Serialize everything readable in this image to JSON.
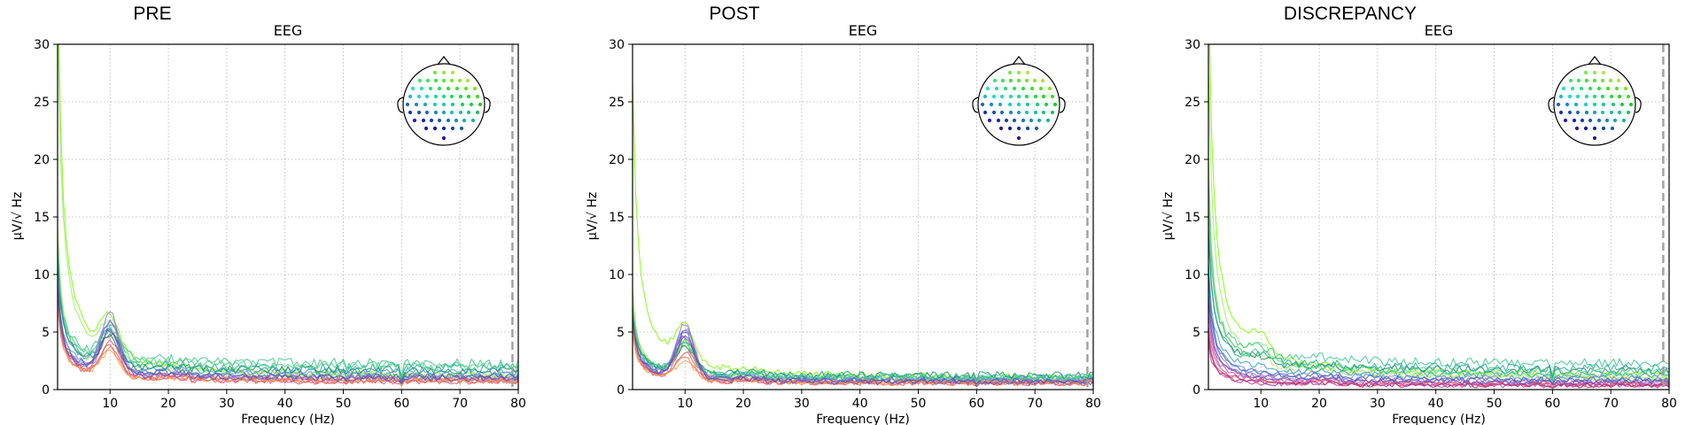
{
  "figure": {
    "panels": [
      {
        "heading": "PRE",
        "axes_title": "EEG",
        "xlabel": "Frequency (Hz)",
        "ylabel": "µV/√ Hz"
      },
      {
        "heading": "POST",
        "axes_title": "EEG",
        "xlabel": "Frequency (Hz)",
        "ylabel": "µV/√ Hz"
      },
      {
        "heading": "DISCREPANCY",
        "axes_title": "EEG",
        "xlabel": "Frequency (Hz)",
        "ylabel": "µV/√ Hz"
      }
    ]
  },
  "colors": {
    "grid": "#b0b0b0",
    "cutoff_line": "#a0a0a0",
    "spine": "#000000"
  },
  "chart_data": [
    {
      "type": "line",
      "title": "EEG",
      "xlabel": "Frequency (Hz)",
      "ylabel": "µV/√ Hz",
      "xlim": [
        1,
        80
      ],
      "ylim": [
        0,
        30
      ],
      "xticks": [
        10,
        20,
        30,
        40,
        50,
        60,
        70,
        80
      ],
      "yticks": [
        0,
        5,
        10,
        15,
        20,
        25,
        30
      ],
      "grid": true,
      "legend": "sensor-position inset, top-right",
      "cutoff_frequency": 79,
      "series_shape": "1/f decay with alpha peak near 10 Hz",
      "series": [
        {
          "color": "#7cfc00",
          "low_freq_value": 36,
          "alpha_peak": 4.6,
          "tail_value": 1.0
        },
        {
          "color": "#98f060",
          "low_freq_value": 32,
          "alpha_peak": 4.4,
          "tail_value": 0.9
        },
        {
          "color": "#b8e070",
          "low_freq_value": 14,
          "alpha_peak": 4.0,
          "tail_value": 1.0
        },
        {
          "color": "#40c890",
          "low_freq_value": 12,
          "alpha_peak": 4.2,
          "tail_value": 2.2
        },
        {
          "color": "#20b0a0",
          "low_freq_value": 11,
          "alpha_peak": 4.1,
          "tail_value": 1.8
        },
        {
          "color": "#3aa0c8",
          "low_freq_value": 10.5,
          "alpha_peak": 4.6,
          "tail_value": 1.5
        },
        {
          "color": "#6a8ce0",
          "low_freq_value": 10,
          "alpha_peak": 5.6,
          "tail_value": 1.2
        },
        {
          "color": "#8c78e8",
          "low_freq_value": 9.5,
          "alpha_peak": 6.5,
          "tail_value": 1.0
        },
        {
          "color": "#a060d0",
          "low_freq_value": 9,
          "alpha_peak": 5.8,
          "tail_value": 0.9
        },
        {
          "color": "#c05ab0",
          "low_freq_value": 8.5,
          "alpha_peak": 5.2,
          "tail_value": 0.8
        },
        {
          "color": "#e0508a",
          "low_freq_value": 8,
          "alpha_peak": 4.5,
          "tail_value": 0.6
        },
        {
          "color": "#e85a5a",
          "low_freq_value": 9,
          "alpha_peak": 4.0,
          "tail_value": 0.6
        },
        {
          "color": "#f08050",
          "low_freq_value": 7.5,
          "alpha_peak": 3.8,
          "tail_value": 0.7
        },
        {
          "color": "#f0a050",
          "low_freq_value": 7,
          "alpha_peak": 3.4,
          "tail_value": 0.8
        },
        {
          "color": "#209070",
          "low_freq_value": 11,
          "alpha_peak": 3.7,
          "tail_value": 1.6
        },
        {
          "color": "#50d080",
          "low_freq_value": 12.5,
          "alpha_peak": 3.9,
          "tail_value": 2.0
        },
        {
          "color": "#4060b0",
          "low_freq_value": 9,
          "alpha_peak": 5.0,
          "tail_value": 1.1
        },
        {
          "color": "#7050a0",
          "low_freq_value": 8.5,
          "alpha_peak": 4.8,
          "tail_value": 0.9
        }
      ]
    },
    {
      "type": "line",
      "title": "EEG",
      "xlabel": "Frequency (Hz)",
      "ylabel": "µV/√ Hz",
      "xlim": [
        1,
        80
      ],
      "ylim": [
        0,
        30
      ],
      "xticks": [
        10,
        20,
        30,
        40,
        50,
        60,
        70,
        80
      ],
      "yticks": [
        0,
        5,
        10,
        15,
        20,
        25,
        30
      ],
      "grid": true,
      "legend": "sensor-position inset, top-right",
      "cutoff_frequency": 79,
      "series_shape": "1/f decay with alpha peak near 10 Hz",
      "series": [
        {
          "color": "#7cfc00",
          "low_freq_value": 27,
          "alpha_peak": 4.3,
          "tail_value": 0.9
        },
        {
          "color": "#98f060",
          "low_freq_value": 9,
          "alpha_peak": 4.1,
          "tail_value": 0.8
        },
        {
          "color": "#b8e070",
          "low_freq_value": 8.5,
          "alpha_peak": 4.0,
          "tail_value": 0.8
        },
        {
          "color": "#40c890",
          "low_freq_value": 7.5,
          "alpha_peak": 4.0,
          "tail_value": 1.1
        },
        {
          "color": "#20b0a0",
          "low_freq_value": 7.2,
          "alpha_peak": 4.3,
          "tail_value": 1.0
        },
        {
          "color": "#3aa0c8",
          "low_freq_value": 7.0,
          "alpha_peak": 4.8,
          "tail_value": 0.9
        },
        {
          "color": "#6a8ce0",
          "low_freq_value": 6.8,
          "alpha_peak": 5.5,
          "tail_value": 0.8
        },
        {
          "color": "#8c78e8",
          "low_freq_value": 6.5,
          "alpha_peak": 6.0,
          "tail_value": 0.7
        },
        {
          "color": "#a060d0",
          "low_freq_value": 6.3,
          "alpha_peak": 5.6,
          "tail_value": 0.7
        },
        {
          "color": "#c05ab0",
          "low_freq_value": 6.0,
          "alpha_peak": 5.0,
          "tail_value": 0.6
        },
        {
          "color": "#e0508a",
          "low_freq_value": 5.8,
          "alpha_peak": 4.4,
          "tail_value": 0.5
        },
        {
          "color": "#e85a5a",
          "low_freq_value": 5.5,
          "alpha_peak": 3.8,
          "tail_value": 0.5
        },
        {
          "color": "#f08050",
          "low_freq_value": 5.2,
          "alpha_peak": 3.4,
          "tail_value": 0.5
        },
        {
          "color": "#f0a050",
          "low_freq_value": 5.0,
          "alpha_peak": 3.0,
          "tail_value": 0.6
        },
        {
          "color": "#209070",
          "low_freq_value": 6.8,
          "alpha_peak": 3.6,
          "tail_value": 1.2
        },
        {
          "color": "#50d080",
          "low_freq_value": 7.4,
          "alpha_peak": 3.8,
          "tail_value": 1.0
        },
        {
          "color": "#4060b0",
          "low_freq_value": 6.6,
          "alpha_peak": 5.2,
          "tail_value": 0.7
        },
        {
          "color": "#7050a0",
          "low_freq_value": 6.2,
          "alpha_peak": 5.0,
          "tail_value": 0.6
        }
      ]
    },
    {
      "type": "line",
      "title": "EEG",
      "xlabel": "Frequency (Hz)",
      "ylabel": "µV/√ Hz",
      "xlim": [
        1,
        80
      ],
      "ylim": [
        0,
        30
      ],
      "xticks": [
        10,
        20,
        30,
        40,
        50,
        60,
        70,
        80
      ],
      "yticks": [
        0,
        5,
        10,
        15,
        20,
        25,
        30
      ],
      "grid": true,
      "legend": "sensor-position inset, top-right",
      "cutoff_frequency": 79,
      "series_shape": "1/f decay, small bump near 9 Hz",
      "series": [
        {
          "color": "#7cfc00",
          "low_freq_value": 36,
          "alpha_peak": 3.0,
          "tail_value": 1.0
        },
        {
          "color": "#98f060",
          "low_freq_value": 28,
          "alpha_peak": 2.6,
          "tail_value": 0.9
        },
        {
          "color": "#b8e070",
          "low_freq_value": 20,
          "alpha_peak": 2.2,
          "tail_value": 0.9
        },
        {
          "color": "#40c890",
          "low_freq_value": 16,
          "alpha_peak": 2.0,
          "tail_value": 2.2
        },
        {
          "color": "#20b0a0",
          "low_freq_value": 13,
          "alpha_peak": 1.8,
          "tail_value": 1.8
        },
        {
          "color": "#3aa0c8",
          "low_freq_value": 11,
          "alpha_peak": 1.6,
          "tail_value": 1.2
        },
        {
          "color": "#6a8ce0",
          "low_freq_value": 9.5,
          "alpha_peak": 1.4,
          "tail_value": 0.9
        },
        {
          "color": "#8c78e8",
          "low_freq_value": 8.5,
          "alpha_peak": 1.3,
          "tail_value": 0.7
        },
        {
          "color": "#a060d0",
          "low_freq_value": 7.5,
          "alpha_peak": 1.2,
          "tail_value": 0.6
        },
        {
          "color": "#c05ab0",
          "low_freq_value": 6.5,
          "alpha_peak": 1.1,
          "tail_value": 0.5
        },
        {
          "color": "#e0508a",
          "low_freq_value": 5.5,
          "alpha_peak": 1.0,
          "tail_value": 0.4
        },
        {
          "color": "#e85a5a",
          "low_freq_value": 5.0,
          "alpha_peak": 0.9,
          "tail_value": 0.4
        },
        {
          "color": "#a0208a",
          "low_freq_value": 4.5,
          "alpha_peak": 0.8,
          "tail_value": 0.3
        },
        {
          "color": "#c0409a",
          "low_freq_value": 4.0,
          "alpha_peak": 0.7,
          "tail_value": 0.3
        },
        {
          "color": "#209070",
          "low_freq_value": 14,
          "alpha_peak": 1.9,
          "tail_value": 1.6
        },
        {
          "color": "#50d080",
          "low_freq_value": 18,
          "alpha_peak": 2.1,
          "tail_value": 1.4
        },
        {
          "color": "#4060b0",
          "low_freq_value": 10,
          "alpha_peak": 1.5,
          "tail_value": 0.8
        },
        {
          "color": "#7050a0",
          "low_freq_value": 8,
          "alpha_peak": 1.2,
          "tail_value": 0.6
        }
      ]
    }
  ]
}
